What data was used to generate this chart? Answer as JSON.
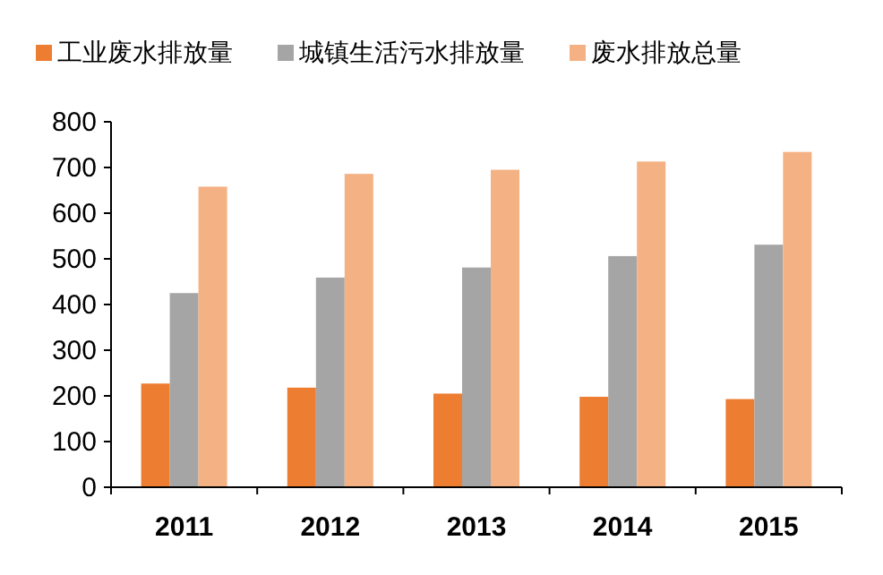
{
  "chart_data": {
    "type": "bar",
    "categories": [
      "2011",
      "2012",
      "2013",
      "2014",
      "2015"
    ],
    "series": [
      {
        "name": "工业废水排放量",
        "color": "#ed7d31",
        "values": [
          227,
          218,
          205,
          198,
          193
        ]
      },
      {
        "name": "城镇生活污水排放量",
        "color": "#a5a5a5",
        "values": [
          425,
          459,
          481,
          506,
          531
        ]
      },
      {
        "name": "废水排放总量",
        "color": "#f4b183",
        "values": [
          658,
          686,
          695,
          713,
          734
        ]
      }
    ],
    "ylim": [
      0,
      800
    ],
    "yticks": [
      0,
      100,
      200,
      300,
      400,
      500,
      600,
      700,
      800
    ],
    "grid": false,
    "legend": "top"
  }
}
